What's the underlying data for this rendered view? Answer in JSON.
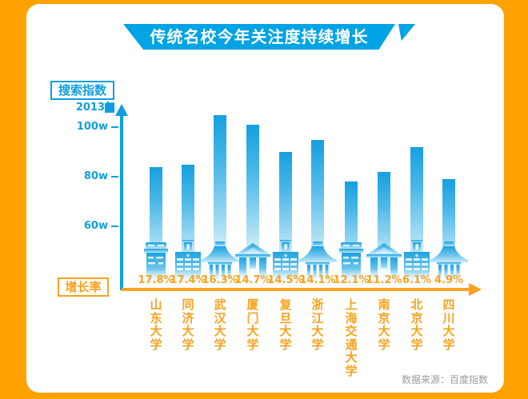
{
  "header": {
    "title": "传统名校今年关注度持续增长"
  },
  "axis": {
    "y_label_box": "搜索指数",
    "series_label": "2013年",
    "y_ticks": [
      "100w",
      "80w",
      "60w"
    ],
    "x_label_box": "增长率"
  },
  "footer": {
    "source": "数据来源：百度指数"
  },
  "colors": {
    "frame_orange": "#ffa200",
    "accent_orange": "#f9a21e",
    "banner_blue": "#00a3e4",
    "axis_blue": "#0f9fe0",
    "bar_blue": "#15a0e0",
    "source_gray": "#9b9b9b"
  },
  "chart_data": {
    "type": "bar",
    "title": "传统名校今年关注度持续增长",
    "ylabel": "搜索指数",
    "xlabel": "增长率",
    "legend": "2013年",
    "y_unit": "w",
    "y_tick_values": [
      100,
      80,
      60
    ],
    "grid": false,
    "categories": [
      "山东大学",
      "同济大学",
      "武汉大学",
      "厦门大学",
      "复旦大学",
      "浙江大学",
      "上海交通大学",
      "南京大学",
      "北京大学",
      "四川大学"
    ],
    "series": [
      {
        "name": "2013年搜索指数(w)",
        "values": [
          84,
          85,
          105,
          101,
          90,
          95,
          78,
          82,
          92,
          79
        ]
      }
    ],
    "growth_rates": [
      "17.8%",
      "17.4%",
      "16.3%",
      "14.7%",
      "14.5%",
      "14.1%",
      "12.1%",
      "11.2%",
      "6.1%",
      "4.9%"
    ],
    "building_icons": [
      "tower",
      "clock-tower",
      "pagoda",
      "gate",
      "clock-tower",
      "pagoda",
      "tower",
      "gate",
      "clock-tower",
      "pagoda"
    ],
    "source": "数据来源：百度指数"
  }
}
